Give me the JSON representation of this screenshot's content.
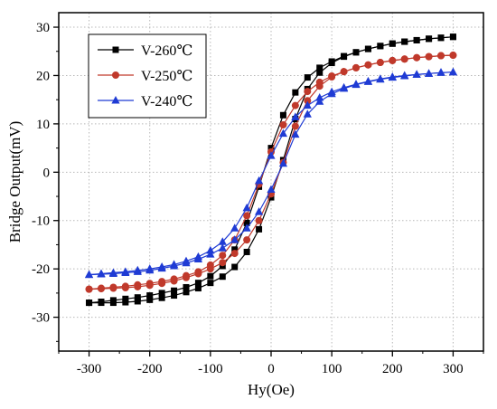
{
  "chart_data": {
    "type": "line",
    "title": "",
    "xlabel": "Hy(Oe)",
    "ylabel": "Bridge Output(mV)",
    "xlim": [
      -350,
      350
    ],
    "ylim": [
      -37,
      33
    ],
    "x_ticks": [
      -300,
      -200,
      -100,
      0,
      100,
      200,
      300
    ],
    "y_ticks": [
      -30,
      -20,
      -10,
      0,
      10,
      20,
      30
    ],
    "x_tick_labels": [
      "-300",
      "-200",
      "-100",
      "0",
      "100",
      "200",
      "300"
    ],
    "y_tick_labels": [
      "-30",
      "-20",
      "-10",
      "0",
      "10",
      "20",
      "30"
    ],
    "grid": true,
    "legend_position": "top-left",
    "series": [
      {
        "name": "V-260℃",
        "color": "#000000",
        "marker": "square",
        "branches": [
          {
            "x": [
              -300,
              -280,
              -260,
              -240,
              -220,
              -200,
              -180,
              -160,
              -140,
              -120,
              -100,
              -80,
              -60,
              -40,
              -20,
              0,
              20,
              40,
              60,
              80,
              100,
              120,
              140,
              160,
              180,
              200,
              220,
              240,
              260,
              280,
              300
            ],
            "y": [
              -27.0,
              -26.8,
              -26.5,
              -26.2,
              -25.9,
              -25.5,
              -25.0,
              -24.5,
              -23.8,
              -22.9,
              -21.5,
              -19.4,
              -16.0,
              -10.5,
              -3.0,
              5.0,
              11.8,
              16.5,
              19.6,
              21.6,
              22.9,
              24.0,
              24.8,
              25.5,
              26.1,
              26.6,
              27.0,
              27.3,
              27.6,
              27.8,
              28.0
            ]
          },
          {
            "x": [
              300,
              280,
              260,
              240,
              220,
              200,
              180,
              160,
              140,
              120,
              100,
              80,
              60,
              40,
              20,
              0,
              -20,
              -40,
              -60,
              -80,
              -100,
              -120,
              -140,
              -160,
              -180,
              -200,
              -220,
              -240,
              -260,
              -280,
              -300
            ],
            "y": [
              28.0,
              27.8,
              27.6,
              27.3,
              27.0,
              26.6,
              26.1,
              25.5,
              24.8,
              23.9,
              22.6,
              20.6,
              17.2,
              11.0,
              2.5,
              -5.2,
              -11.8,
              -16.5,
              -19.6,
              -21.6,
              -22.9,
              -24.0,
              -24.8,
              -25.5,
              -26.0,
              -26.4,
              -26.7,
              -26.9,
              -27.0,
              -27.0,
              -27.0
            ]
          }
        ]
      },
      {
        "name": "V-250℃",
        "color": "#c0392b",
        "marker": "circle",
        "branches": [
          {
            "x": [
              -300,
              -280,
              -260,
              -240,
              -220,
              -200,
              -180,
              -160,
              -140,
              -120,
              -100,
              -80,
              -60,
              -40,
              -20,
              0,
              20,
              40,
              60,
              80,
              100,
              120,
              140,
              160,
              180,
              200,
              220,
              240,
              260,
              280,
              300
            ],
            "y": [
              -24.2,
              -24.0,
              -23.8,
              -23.6,
              -23.3,
              -23.0,
              -22.6,
              -22.1,
              -21.4,
              -20.6,
              -19.2,
              -17.2,
              -14.0,
              -9.0,
              -2.5,
              4.2,
              9.8,
              13.8,
              16.7,
              18.6,
              19.9,
              20.8,
              21.6,
              22.2,
              22.7,
              23.1,
              23.4,
              23.7,
              23.9,
              24.1,
              24.2
            ]
          },
          {
            "x": [
              300,
              280,
              260,
              240,
              220,
              200,
              180,
              160,
              140,
              120,
              100,
              80,
              60,
              40,
              20,
              0,
              -20,
              -40,
              -60,
              -80,
              -100,
              -120,
              -140,
              -160,
              -180,
              -200,
              -220,
              -240,
              -260,
              -280,
              -300
            ],
            "y": [
              24.2,
              24.1,
              23.9,
              23.7,
              23.4,
              23.1,
              22.7,
              22.2,
              21.6,
              20.8,
              19.7,
              17.8,
              14.8,
              9.5,
              2.0,
              -4.5,
              -10.0,
              -14.0,
              -16.8,
              -18.7,
              -20.0,
              -21.0,
              -21.8,
              -22.5,
              -23.0,
              -23.4,
              -23.7,
              -23.9,
              -24.0,
              -24.1,
              -24.2
            ]
          }
        ]
      },
      {
        "name": "V-240℃",
        "color": "#1f3bd4",
        "marker": "triangle",
        "branches": [
          {
            "x": [
              -300,
              -280,
              -260,
              -240,
              -220,
              -200,
              -180,
              -160,
              -140,
              -120,
              -100,
              -80,
              -60,
              -40,
              -20,
              0,
              20,
              40,
              60,
              80,
              100,
              120,
              140,
              160,
              180,
              200,
              220,
              240,
              260,
              280,
              300
            ],
            "y": [
              -21.2,
              -21.0,
              -20.8,
              -20.6,
              -20.3,
              -20.0,
              -19.6,
              -19.1,
              -18.4,
              -17.5,
              -16.2,
              -14.4,
              -11.6,
              -7.4,
              -1.8,
              3.4,
              8.0,
              11.4,
              13.8,
              15.4,
              16.6,
              17.5,
              18.2,
              18.8,
              19.3,
              19.7,
              20.0,
              20.2,
              20.4,
              20.6,
              20.7
            ]
          },
          {
            "x": [
              300,
              280,
              260,
              240,
              220,
              200,
              180,
              160,
              140,
              120,
              100,
              80,
              60,
              40,
              20,
              0,
              -20,
              -40,
              -60,
              -80,
              -100,
              -120,
              -140,
              -160,
              -180,
              -200,
              -220,
              -240,
              -260,
              -280,
              -300
            ],
            "y": [
              20.7,
              20.6,
              20.4,
              20.2,
              19.9,
              19.6,
              19.2,
              18.7,
              18.1,
              17.3,
              16.2,
              14.6,
              12.0,
              7.8,
              1.8,
              -3.6,
              -8.2,
              -11.6,
              -14.0,
              -15.7,
              -17.0,
              -18.0,
              -18.8,
              -19.4,
              -19.9,
              -20.3,
              -20.6,
              -20.8,
              -21.0,
              -21.1,
              -21.2
            ]
          }
        ]
      }
    ]
  }
}
